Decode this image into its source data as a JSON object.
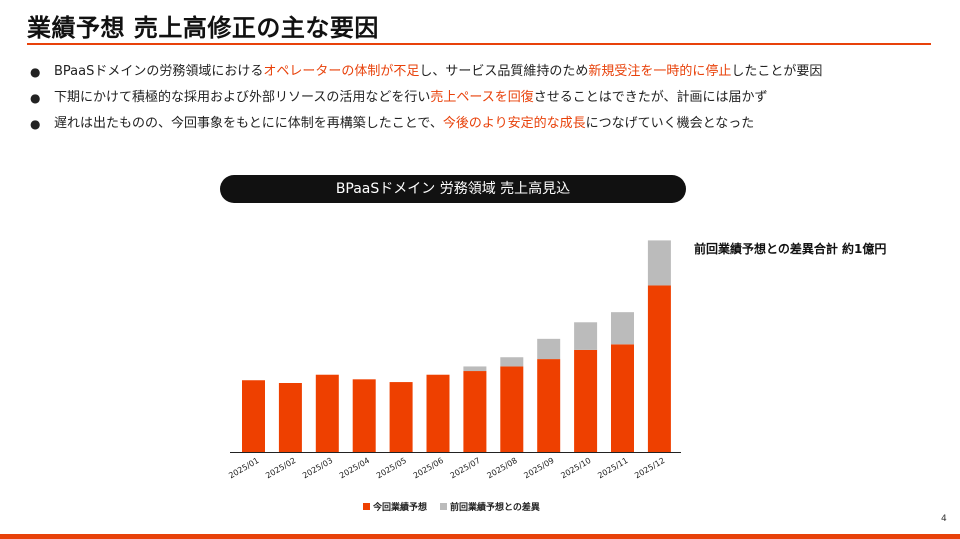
{
  "slide": {
    "title": "業績予想 売上高修正の主な要因",
    "page_number": "4",
    "accent_color": "#e8410a"
  },
  "bullets": [
    [
      {
        "text": "BPaaSドメインの労務領域における",
        "hl": false
      },
      {
        "text": "オペレーターの体制が不足",
        "hl": true
      },
      {
        "text": "し、サービス品質維持のため",
        "hl": false
      },
      {
        "text": "新規受注を一時的に停止",
        "hl": true
      },
      {
        "text": "したことが要因",
        "hl": false
      }
    ],
    [
      {
        "text": "下期にかけて積極的な採用および外部リソースの活用などを行い",
        "hl": false
      },
      {
        "text": "売上ペースを回復",
        "hl": true
      },
      {
        "text": "させることはできたが、計画には届かず",
        "hl": false
      }
    ],
    [
      {
        "text": "遅れは出たものの、今回事象をもとにに体制を再構築したことで、",
        "hl": false
      },
      {
        "text": "今後のより安定的な成長",
        "hl": true
      },
      {
        "text": "につなげていく機会となった",
        "hl": false
      }
    ]
  ],
  "chart_title": "BPaaSドメイン 労務領域 売上高見込",
  "diff_note": "前回業績予想との差異合計 約1億円",
  "chart_data": {
    "type": "bar",
    "stacked": true,
    "title": "BPaaSドメイン 労務領域 売上高見込",
    "categories": [
      "2025/01",
      "2025/02",
      "2025/03",
      "2025/04",
      "2025/05",
      "2025/06",
      "2025/07",
      "2025/08",
      "2025/09",
      "2025/10",
      "2025/11",
      "2025/12"
    ],
    "series": [
      {
        "name": "今回業績予想",
        "color": "#ee4000",
        "values": [
          78,
          75,
          84,
          79,
          76,
          84,
          88,
          93,
          101,
          111,
          117,
          181
        ]
      },
      {
        "name": "前回業績予想との差異",
        "color": "#bbbbbb",
        "values": [
          0,
          0,
          0,
          0,
          0,
          0,
          5,
          10,
          22,
          30,
          35,
          49
        ]
      }
    ],
    "ylim": [
      0,
      250
    ],
    "y_axis_visible": false,
    "legend_position": "bottom-center"
  }
}
